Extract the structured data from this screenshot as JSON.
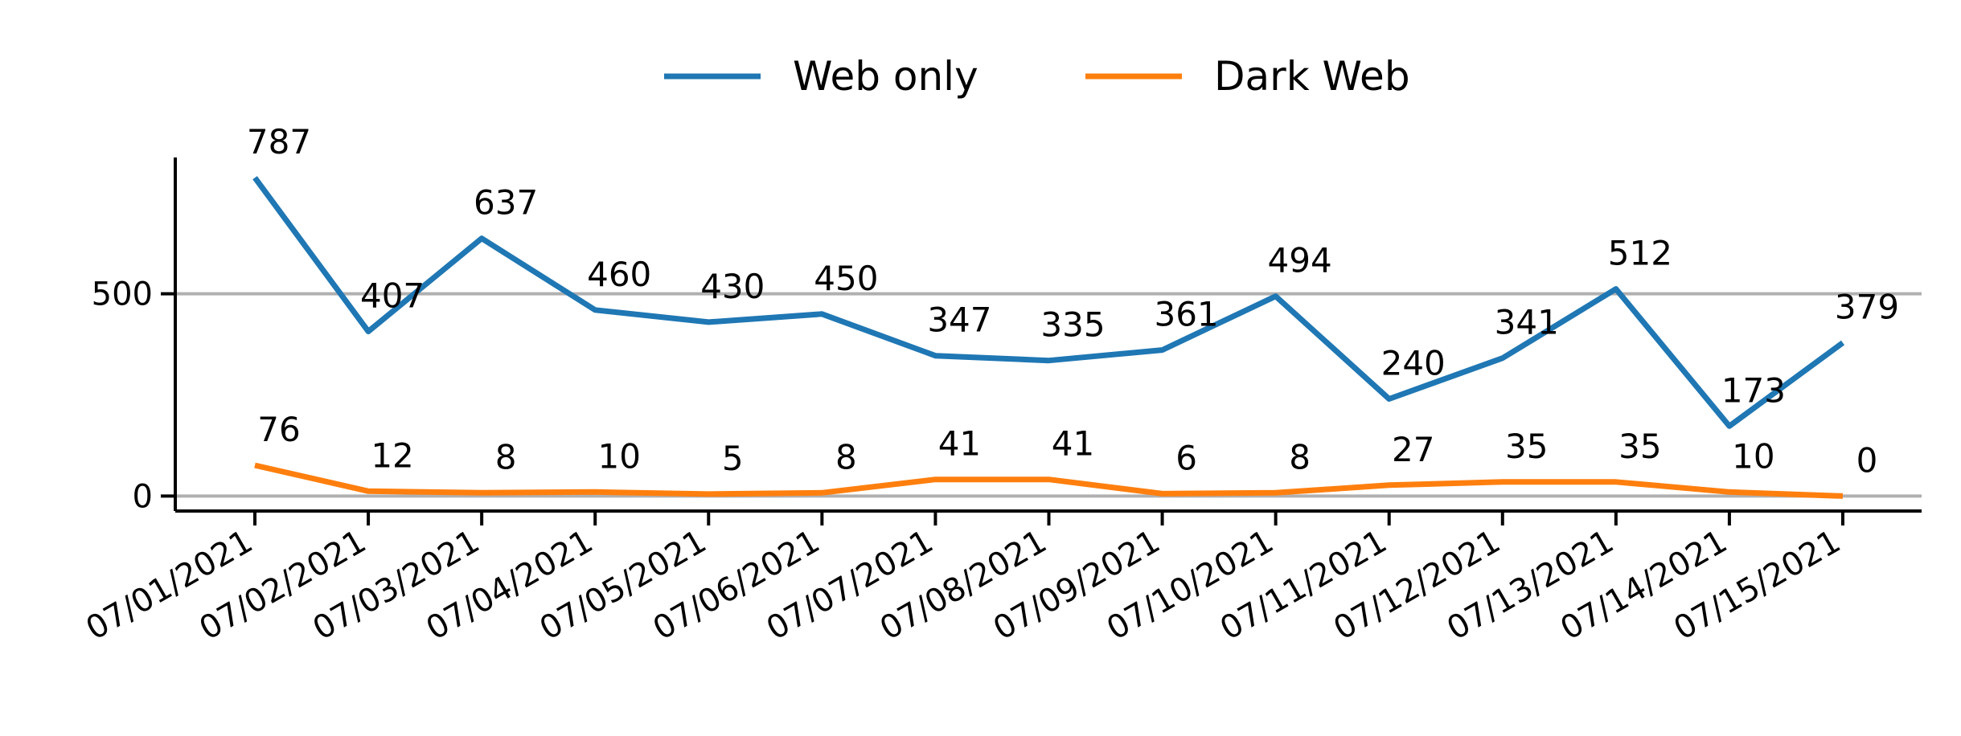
{
  "chart_data": {
    "type": "line",
    "title": "",
    "xlabel": "",
    "ylabel": "",
    "categories": [
      "07/01/2021",
      "07/02/2021",
      "07/03/2021",
      "07/04/2021",
      "07/05/2021",
      "07/06/2021",
      "07/07/2021",
      "07/08/2021",
      "07/09/2021",
      "07/10/2021",
      "07/11/2021",
      "07/12/2021",
      "07/13/2021",
      "07/14/2021",
      "07/15/2021"
    ],
    "series": [
      {
        "name": "Web only",
        "color": "#1f77b4",
        "values": [
          787,
          407,
          637,
          460,
          430,
          450,
          347,
          335,
          361,
          494,
          240,
          341,
          512,
          173,
          379
        ]
      },
      {
        "name": "Dark Web",
        "color": "#ff7f0e",
        "values": [
          76,
          12,
          8,
          10,
          5,
          8,
          41,
          41,
          6,
          8,
          27,
          35,
          35,
          10,
          0
        ]
      }
    ],
    "yticks": [
      0,
      500
    ],
    "ylim": [
      -37,
      837
    ],
    "grid": "horizontal",
    "legend_position": "top-center"
  }
}
